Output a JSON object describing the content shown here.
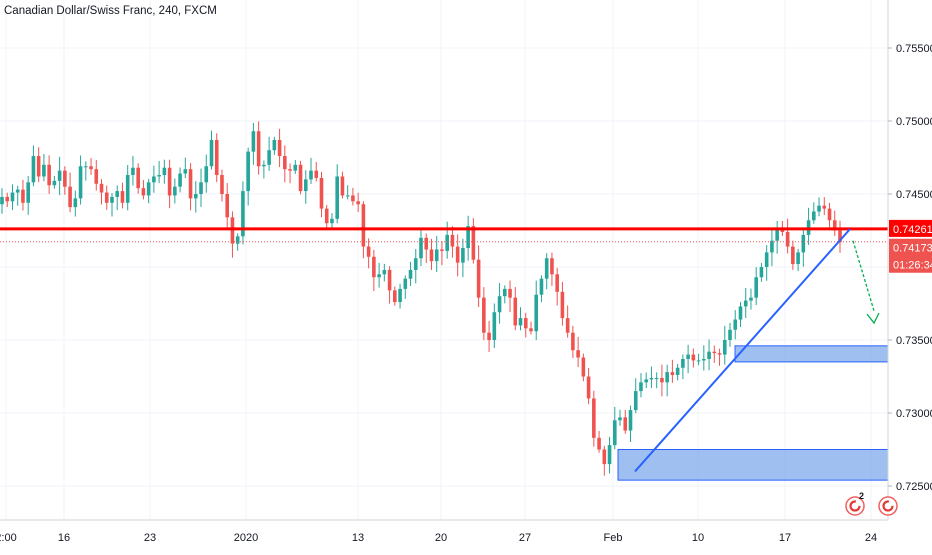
{
  "header": {
    "title": "Canadian Dollar/Swiss Franc, 240, FXCM"
  },
  "chart_data": {
    "type": "candlestick",
    "title": "Canadian Dollar/Swiss Franc, 240, FXCM",
    "symbol": "CADCHF",
    "interval": "240",
    "source": "FXCM",
    "ylim": [
      0.724,
      0.759
    ],
    "y_ticks": [
      0.755,
      0.75,
      0.745,
      0.735,
      0.73,
      0.725
    ],
    "y_tick_labels": [
      "0.75500",
      "0.75000",
      "0.74500",
      "0.73500",
      "0.73000",
      "0.72500"
    ],
    "x_tick_labels": [
      "2:00",
      "16",
      "23",
      "2020",
      "13",
      "20",
      "27",
      "Feb",
      "10",
      "17",
      "24"
    ],
    "grid": true,
    "price_labels": {
      "resistance": "0.74261",
      "last": "0.74173",
      "countdown": "01:26:34"
    },
    "colors": {
      "up": "#26a69a",
      "down": "#ef5350",
      "resistance_line": "#ff0000",
      "trendline": "#2962ff",
      "zone_fill": "#6a9de8",
      "projection_arrow": "#00b050",
      "grid": "#f0f3fa"
    },
    "price_path": [
      0.7448,
      0.7445,
      0.7451,
      0.7453,
      0.7444,
      0.7458,
      0.7476,
      0.7462,
      0.747,
      0.7456,
      0.7459,
      0.7466,
      0.7455,
      0.7441,
      0.7447,
      0.7469,
      0.7469,
      0.7467,
      0.7457,
      0.7451,
      0.7444,
      0.7448,
      0.7452,
      0.7444,
      0.7463,
      0.7468,
      0.7454,
      0.7449,
      0.7458,
      0.7462,
      0.7463,
      0.7468,
      0.7449,
      0.7455,
      0.7464,
      0.7467,
      0.7447,
      0.745,
      0.7458,
      0.7469,
      0.7487,
      0.7463,
      0.745,
      0.7434,
      0.7416,
      0.7421,
      0.7452,
      0.7479,
      0.7493,
      0.7469,
      0.747,
      0.748,
      0.7487,
      0.7476,
      0.7467,
      0.7466,
      0.747,
      0.7452,
      0.746,
      0.7466,
      0.7461,
      0.744,
      0.743,
      0.7433,
      0.7462,
      0.7449,
      0.7449,
      0.7445,
      0.7443,
      0.7414,
      0.7407,
      0.7393,
      0.7395,
      0.7398,
      0.7384,
      0.7376,
      0.7385,
      0.7392,
      0.7398,
      0.7406,
      0.742,
      0.7412,
      0.7404,
      0.7412,
      0.7411,
      0.7422,
      0.7414,
      0.7403,
      0.7413,
      0.7428,
      0.7405,
      0.7379,
      0.7355,
      0.735,
      0.7369,
      0.738,
      0.7385,
      0.7379,
      0.736,
      0.7365,
      0.7358,
      0.7356,
      0.7381,
      0.7392,
      0.7406,
      0.7395,
      0.7383,
      0.7365,
      0.7355,
      0.7343,
      0.7338,
      0.7325,
      0.731,
      0.7283,
      0.7275,
      0.7265,
      0.7278,
      0.7295,
      0.7297,
      0.7288,
      0.7302,
      0.7315,
      0.7321,
      0.7323,
      0.7324,
      0.7324,
      0.7321,
      0.7328,
      0.7326,
      0.7331,
      0.7337,
      0.734,
      0.7336,
      0.7336,
      0.7337,
      0.7342,
      0.7341,
      0.734,
      0.735,
      0.7357,
      0.7364,
      0.7373,
      0.7377,
      0.7379,
      0.7393,
      0.74,
      0.741,
      0.7418,
      0.7426,
      0.7424,
      0.7414,
      0.7402,
      0.741,
      0.7422,
      0.7432,
      0.7438,
      0.7442,
      0.744,
      0.7432,
      0.7425,
      0.7417
    ]
  },
  "annotations": {
    "resistance_level": 0.74261,
    "current_level": 0.74173,
    "trendline": {
      "from": [
        "2020-02-03",
        0.726
      ],
      "to": [
        "2020-02-21",
        0.7426
      ]
    },
    "zones": [
      {
        "name": "upper-demand-zone",
        "from": "2020-02-13",
        "top": 0.7346,
        "bottom": 0.7335
      },
      {
        "name": "lower-demand-zone",
        "from": "2020-02-03",
        "top": 0.7275,
        "bottom": 0.7254
      }
    ]
  },
  "footer_icons": [
    "tradingview-events-icon",
    "tradingview-events-icon"
  ],
  "footer_badge": "2"
}
